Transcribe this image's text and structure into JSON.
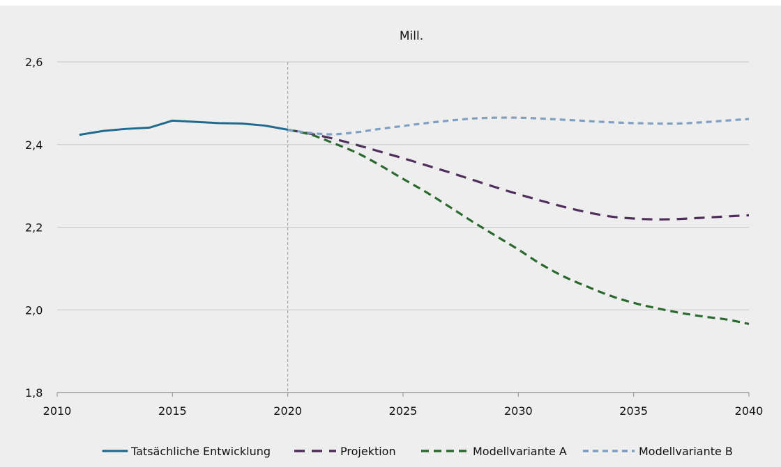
{
  "chart_data": {
    "type": "line",
    "title": "Mill.",
    "xlabel": "",
    "ylabel": "",
    "xlim": [
      2010,
      2040
    ],
    "ylim": [
      1.8,
      2.6
    ],
    "x_ticks": [
      2010,
      2015,
      2020,
      2025,
      2030,
      2035,
      2040
    ],
    "x_tick_labels": [
      "2010",
      "2015",
      "2020",
      "2025",
      "2030",
      "2035",
      "2040"
    ],
    "y_ticks": [
      1.8,
      2.0,
      2.2,
      2.4,
      2.6
    ],
    "y_tick_labels": [
      "1,8",
      "2,0",
      "2,2",
      "2,4",
      "2,6"
    ],
    "grid": true,
    "reference_line_x": 2020,
    "legend_position": "bottom",
    "series": [
      {
        "name": "Tatsächliche Entwicklung",
        "color": "#1f6b8f",
        "dash": "solid",
        "x": [
          2011,
          2012,
          2013,
          2014,
          2015,
          2016,
          2017,
          2018,
          2019,
          2020
        ],
        "values": [
          2.424,
          2.433,
          2.438,
          2.441,
          2.458,
          2.455,
          2.452,
          2.451,
          2.446,
          2.436
        ]
      },
      {
        "name": "Projektion",
        "color": "#4f2d5c",
        "dash": "long",
        "x": [
          2020,
          2021,
          2022,
          2023,
          2024,
          2025,
          2026,
          2027,
          2028,
          2029,
          2030,
          2031,
          2032,
          2033,
          2034,
          2035,
          2036,
          2037,
          2038,
          2039,
          2040
        ],
        "values": [
          2.436,
          2.426,
          2.414,
          2.399,
          2.383,
          2.367,
          2.35,
          2.333,
          2.315,
          2.297,
          2.28,
          2.264,
          2.249,
          2.236,
          2.226,
          2.221,
          2.219,
          2.22,
          2.223,
          2.226,
          2.229
        ]
      },
      {
        "name": "Modellvariante A",
        "color": "#2b6a2f",
        "dash": "medium",
        "x": [
          2020,
          2021,
          2022,
          2023,
          2024,
          2025,
          2026,
          2027,
          2028,
          2029,
          2030,
          2031,
          2032,
          2033,
          2034,
          2035,
          2036,
          2037,
          2038,
          2039,
          2040
        ],
        "values": [
          2.436,
          2.424,
          2.403,
          2.38,
          2.35,
          2.317,
          2.285,
          2.25,
          2.214,
          2.18,
          2.146,
          2.11,
          2.08,
          2.056,
          2.034,
          2.017,
          2.004,
          1.993,
          1.984,
          1.977,
          1.966
        ]
      },
      {
        "name": "Modellvariante B",
        "color": "#7f9fc3",
        "dash": "short",
        "x": [
          2020,
          2021,
          2022,
          2023,
          2024,
          2025,
          2026,
          2027,
          2028,
          2029,
          2030,
          2031,
          2032,
          2033,
          2034,
          2035,
          2036,
          2037,
          2038,
          2039,
          2040
        ],
        "values": [
          2.436,
          2.428,
          2.425,
          2.43,
          2.438,
          2.445,
          2.452,
          2.458,
          2.463,
          2.465,
          2.465,
          2.463,
          2.46,
          2.457,
          2.454,
          2.452,
          2.451,
          2.451,
          2.454,
          2.458,
          2.462
        ]
      }
    ]
  }
}
